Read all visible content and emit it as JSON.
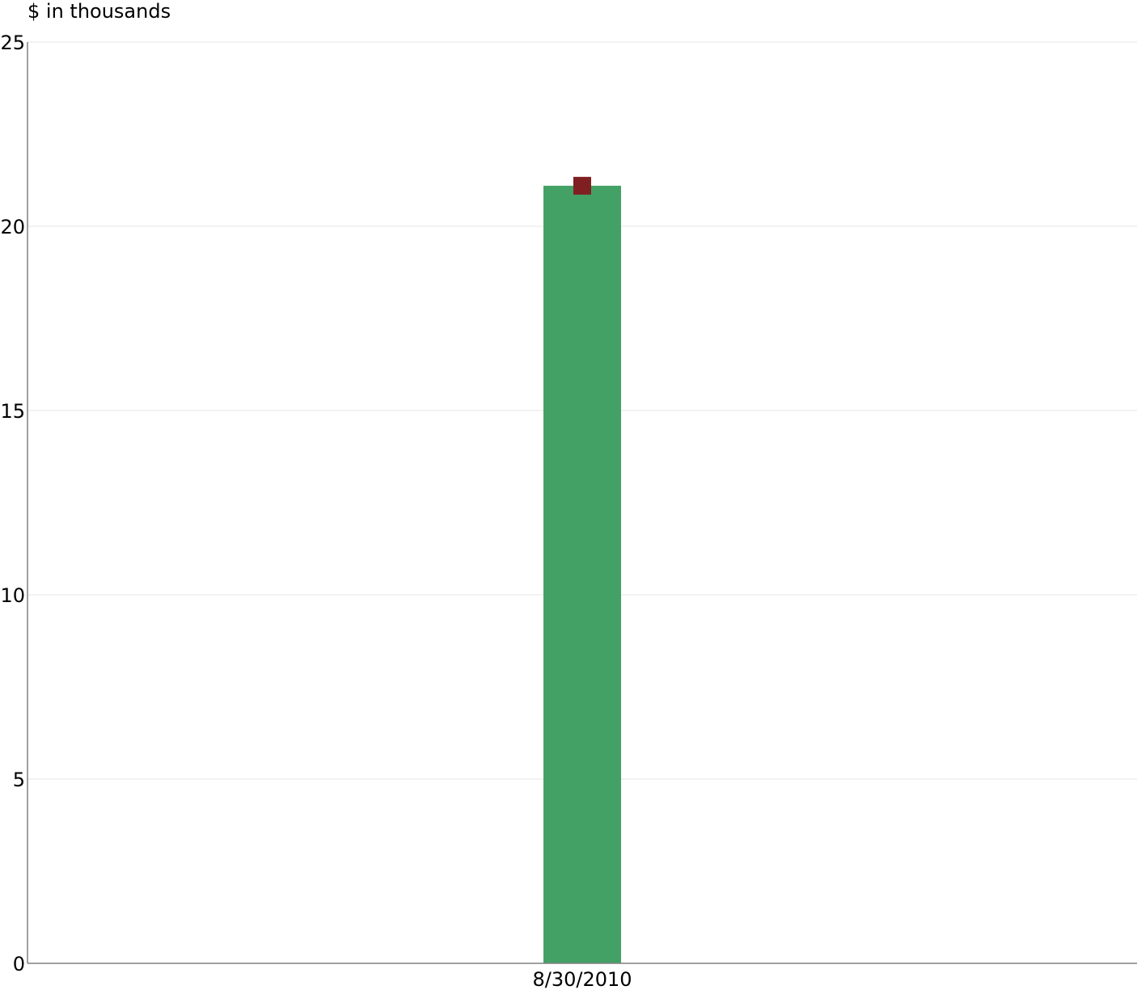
{
  "chart_data": {
    "type": "bar",
    "title": "",
    "ylabel": "$ in thousands",
    "xlabel": "",
    "categories": [
      "8/30/2010"
    ],
    "series": [
      {
        "values": [
          21.1
        ],
        "color": "#43a166",
        "kind": "bar"
      },
      {
        "values": [
          21.1
        ],
        "color": "#7f1f22",
        "kind": "marker",
        "marker": "square"
      }
    ],
    "ylim": [
      0,
      25
    ],
    "yticks": [
      0,
      5,
      10,
      15,
      20,
      25
    ],
    "grid": true,
    "legend": "none"
  }
}
